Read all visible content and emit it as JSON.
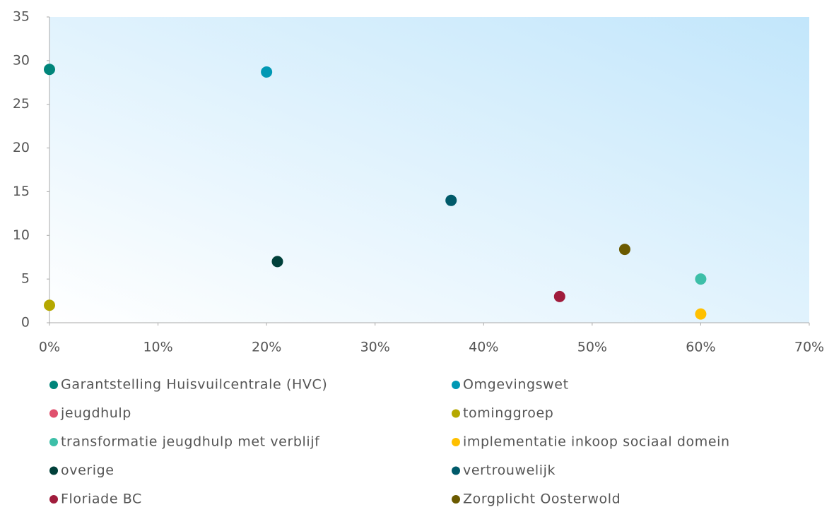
{
  "chart_data": {
    "type": "scatter",
    "xlim": [
      0,
      70
    ],
    "xticks": [
      {
        "value": 0,
        "label": "0%"
      },
      {
        "value": 10,
        "label": "10%"
      },
      {
        "value": 20,
        "label": "20%"
      },
      {
        "value": 30,
        "label": "30%"
      },
      {
        "value": 40,
        "label": "40%"
      },
      {
        "value": 50,
        "label": "50%"
      },
      {
        "value": 60,
        "label": "60%"
      },
      {
        "value": 70,
        "label": "70%"
      }
    ],
    "ylim": [
      0,
      35
    ],
    "yticks": [
      0,
      5,
      10,
      15,
      20,
      25,
      30,
      35
    ],
    "grid": false,
    "legend": "bottom",
    "series": [
      {
        "name": "Garantstelling Huisvuilcentrale (HVC)",
        "color": "#00857a",
        "x": [
          0
        ],
        "values": [
          29
        ]
      },
      {
        "name": "Omgevingswet",
        "color": "#0098b4",
        "x": [
          20
        ],
        "values": [
          28.7
        ]
      },
      {
        "name": "jeugdhulp",
        "color": "#e0506e",
        "x": [],
        "values": []
      },
      {
        "name": "tominggroep",
        "color": "#b5a800",
        "x": [
          0
        ],
        "values": [
          2
        ]
      },
      {
        "name": "transformatie jeugdhulp met verblijf",
        "color": "#3dbfa8",
        "x": [
          60
        ],
        "values": [
          5
        ]
      },
      {
        "name": "implementatie inkoop sociaal domein",
        "color": "#ffc000",
        "x": [
          60
        ],
        "values": [
          1
        ]
      },
      {
        "name": "overige",
        "color": "#00403a",
        "x": [
          21
        ],
        "values": [
          7
        ]
      },
      {
        "name": "vertrouwelijk",
        "color": "#005a6a",
        "x": [
          37
        ],
        "values": [
          14
        ]
      },
      {
        "name": "Floriade BC",
        "color": "#a01c3c",
        "x": [
          47
        ],
        "values": [
          3
        ]
      },
      {
        "name": "Zorgplicht Oosterwold",
        "color": "#6b5a00",
        "x": [
          53
        ],
        "values": [
          8.4
        ]
      }
    ]
  }
}
